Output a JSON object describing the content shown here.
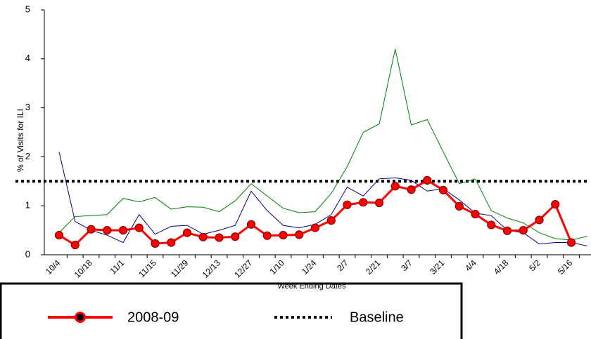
{
  "chart_data": {
    "type": "line",
    "y_label": "% of Visits for ILI",
    "x_label": "Week Ending Dates",
    "categories": [
      "10/4",
      null,
      "10/18",
      null,
      "11/1",
      null,
      "11/15",
      null,
      "11/29",
      null,
      "12/13",
      null,
      "12/27",
      null,
      "1/10",
      null,
      "1/24",
      null,
      "2/7",
      null,
      "2/21",
      null,
      "3/7",
      null,
      "3/21",
      null,
      "4/4",
      null,
      "4/18",
      null,
      "5/2",
      null,
      "5/16",
      null
    ],
    "series": [
      {
        "name": "2008-09",
        "color": "#ff0000",
        "marker": true,
        "values": [
          0.4,
          0.2,
          0.52,
          0.5,
          0.5,
          0.55,
          0.23,
          0.25,
          0.45,
          0.36,
          0.35,
          0.37,
          0.62,
          0.39,
          0.4,
          0.41,
          0.55,
          0.7,
          1.02,
          1.07,
          1.06,
          1.4,
          1.33,
          1.52,
          1.32,
          0.99,
          0.83,
          0.61,
          0.49,
          0.5,
          0.71,
          1.03,
          0.25,
          null
        ]
      },
      {
        "color": "#00008b",
        "marker": false,
        "values": [
          2.1,
          0.68,
          0.5,
          0.4,
          0.25,
          0.82,
          0.42,
          0.58,
          0.6,
          0.42,
          0.5,
          0.6,
          1.3,
          0.9,
          0.6,
          0.55,
          0.62,
          0.82,
          1.38,
          1.2,
          1.55,
          1.57,
          1.52,
          1.3,
          1.35,
          1.12,
          0.85,
          0.8,
          0.5,
          0.45,
          0.22,
          0.25,
          0.25,
          0.18
        ]
      },
      {
        "color": "#008000",
        "marker": false,
        "values": [
          0.45,
          0.78,
          0.8,
          0.82,
          1.15,
          1.08,
          1.17,
          0.93,
          0.98,
          0.97,
          0.88,
          1.1,
          1.45,
          1.2,
          0.95,
          0.86,
          0.88,
          1.25,
          1.8,
          2.5,
          2.67,
          4.2,
          2.65,
          2.76,
          2.1,
          1.45,
          1.55,
          0.9,
          0.75,
          0.65,
          0.45,
          0.33,
          0.3,
          0.38
        ]
      }
    ],
    "reference_line": {
      "label": "Baseline",
      "value": 1.5,
      "color": "#000000"
    },
    "ylim": [
      0,
      5
    ],
    "yticks": [
      0,
      1,
      2,
      3,
      4,
      5
    ]
  }
}
